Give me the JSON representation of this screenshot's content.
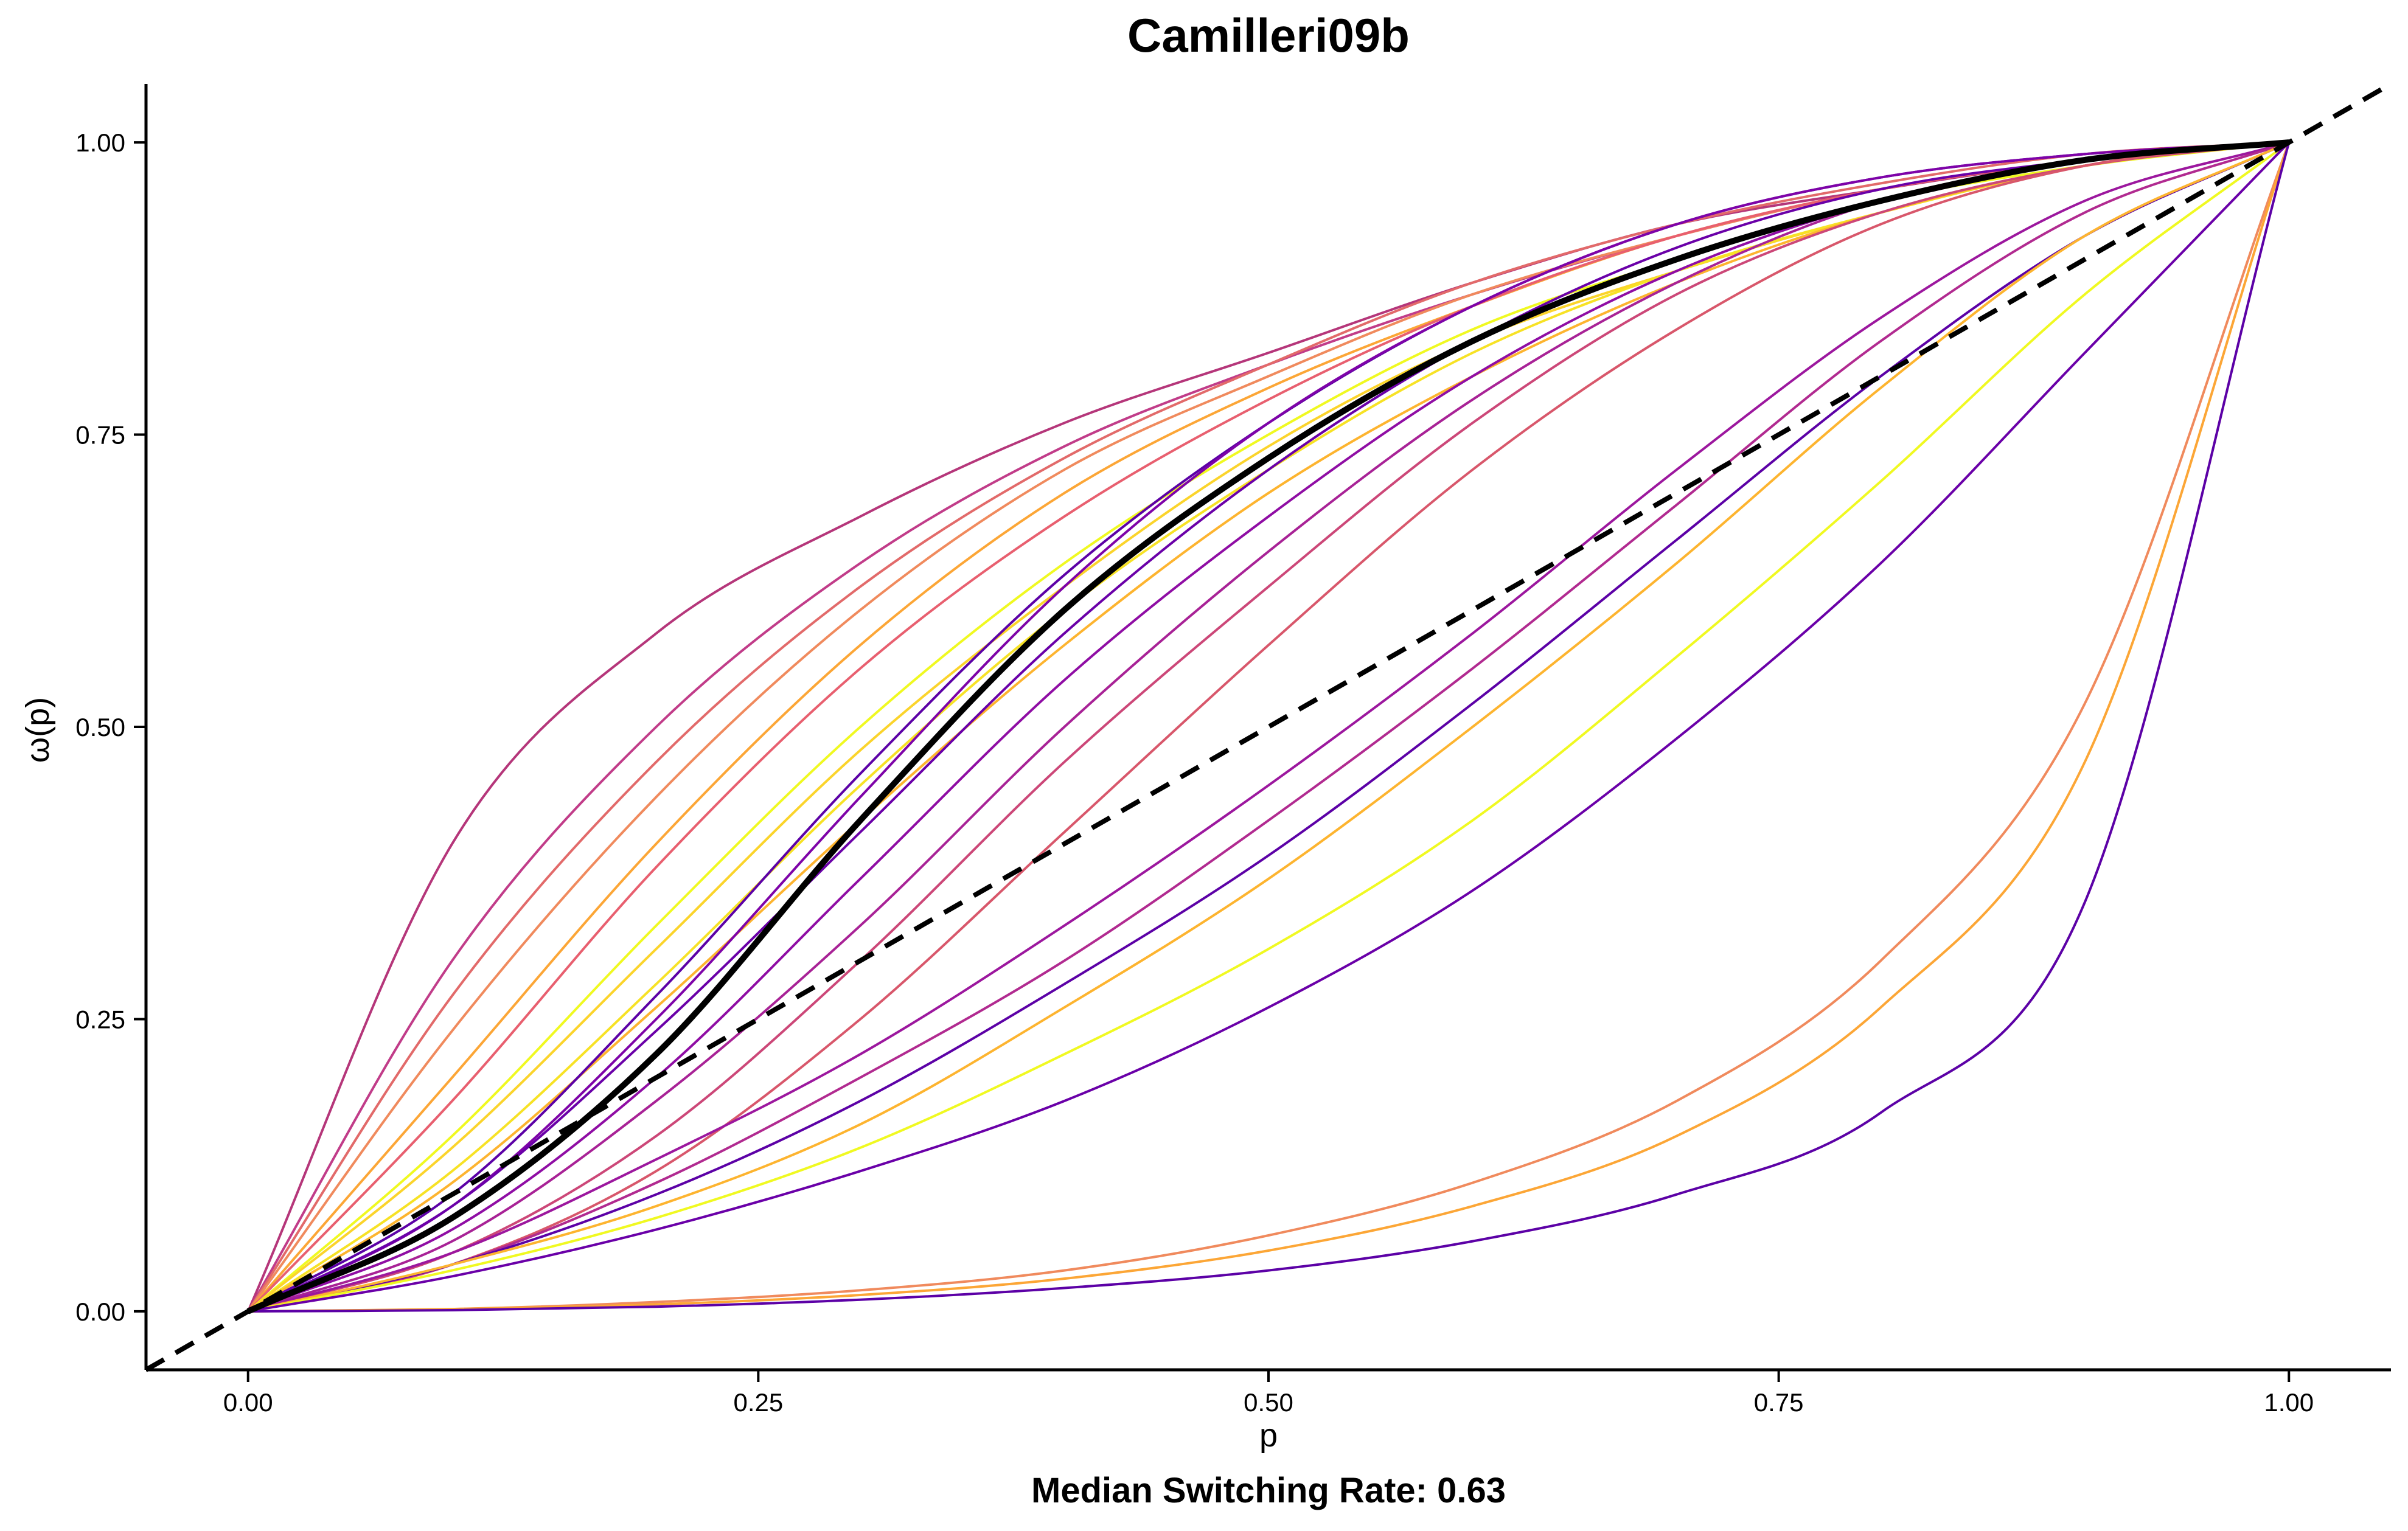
{
  "chart_data": {
    "type": "line",
    "title": "Camilleri09b",
    "xlabel": "p",
    "ylabel": "ω(p)",
    "caption": "Median Switching Rate: 0.63",
    "xlim": [
      -0.05,
      1.05
    ],
    "ylim": [
      -0.05,
      1.05
    ],
    "x_ticks": [
      0,
      0.25,
      0.5,
      0.75,
      1
    ],
    "x_tick_labels": [
      "0.00",
      "0.25",
      "0.50",
      "0.75",
      "1.00"
    ],
    "y_ticks": [
      0,
      0.25,
      0.5,
      0.75,
      1
    ],
    "y_tick_labels": [
      "0.00",
      "0.25",
      "0.50",
      "0.75",
      "1.00"
    ],
    "grid": false,
    "legend": "none",
    "reference_line": {
      "style": "dashed",
      "color": "#000000",
      "slope": 1,
      "intercept": 0
    },
    "median_curve": {
      "color": "#000000",
      "x": [
        0,
        0.1,
        0.2,
        0.3,
        0.4,
        0.5,
        0.6,
        0.7,
        0.8,
        0.9,
        1.0
      ],
      "y": [
        0,
        0.08,
        0.22,
        0.42,
        0.6,
        0.73,
        0.83,
        0.9,
        0.95,
        0.985,
        1.0
      ]
    },
    "x": [
      0,
      0.1,
      0.2,
      0.3,
      0.4,
      0.5,
      0.6,
      0.7,
      0.8,
      0.9,
      1.0
    ],
    "series": [
      {
        "color": "#b5367a",
        "values": [
          0,
          0.4,
          0.58,
          0.68,
          0.76,
          0.82,
          0.88,
          0.93,
          0.96,
          0.985,
          1.0
        ]
      },
      {
        "color": "#c13c89",
        "values": [
          0,
          0.3,
          0.5,
          0.64,
          0.74,
          0.81,
          0.87,
          0.92,
          0.96,
          0.985,
          1.0
        ]
      },
      {
        "color": "#e26a6a",
        "values": [
          0,
          0.27,
          0.47,
          0.62,
          0.73,
          0.81,
          0.88,
          0.93,
          0.965,
          0.99,
          1.0
        ]
      },
      {
        "color": "#f08a5d",
        "values": [
          0,
          0.24,
          0.44,
          0.6,
          0.72,
          0.8,
          0.87,
          0.92,
          0.96,
          0.985,
          1.0
        ]
      },
      {
        "color": "#fca636",
        "values": [
          0,
          0.2,
          0.4,
          0.57,
          0.7,
          0.79,
          0.86,
          0.92,
          0.96,
          0.985,
          1.0
        ]
      },
      {
        "color": "#e85f6f",
        "values": [
          0,
          0.18,
          0.38,
          0.55,
          0.68,
          0.78,
          0.86,
          0.92,
          0.96,
          0.985,
          1.0
        ]
      },
      {
        "color": "#f0f921",
        "values": [
          0,
          0.15,
          0.33,
          0.5,
          0.64,
          0.75,
          0.84,
          0.9,
          0.95,
          0.98,
          1.0
        ]
      },
      {
        "color": "#fbd42b",
        "values": [
          0,
          0.14,
          0.31,
          0.48,
          0.62,
          0.74,
          0.83,
          0.89,
          0.94,
          0.98,
          1.0
        ]
      },
      {
        "color": "#f7e225",
        "values": [
          0,
          0.12,
          0.28,
          0.45,
          0.6,
          0.72,
          0.82,
          0.89,
          0.94,
          0.98,
          1.0
        ]
      },
      {
        "color": "#fdb42f",
        "values": [
          0,
          0.11,
          0.26,
          0.42,
          0.57,
          0.7,
          0.8,
          0.88,
          0.94,
          0.98,
          1.0
        ]
      },
      {
        "color": "#5c01a6",
        "values": [
          0,
          0.1,
          0.27,
          0.46,
          0.63,
          0.76,
          0.86,
          0.93,
          0.97,
          0.99,
          1.0
        ]
      },
      {
        "color": "#7e03a8",
        "values": [
          0,
          0.09,
          0.25,
          0.44,
          0.62,
          0.76,
          0.86,
          0.93,
          0.97,
          0.99,
          1.0
        ]
      },
      {
        "color": "#6a00a8",
        "values": [
          0,
          0.09,
          0.24,
          0.41,
          0.58,
          0.72,
          0.83,
          0.91,
          0.96,
          0.985,
          1.0
        ]
      },
      {
        "color": "#8f0da4",
        "values": [
          0,
          0.07,
          0.2,
          0.37,
          0.54,
          0.68,
          0.8,
          0.89,
          0.95,
          0.985,
          1.0
        ]
      },
      {
        "color": "#a82296",
        "values": [
          0,
          0.06,
          0.18,
          0.33,
          0.5,
          0.65,
          0.78,
          0.88,
          0.95,
          0.985,
          1.0
        ]
      },
      {
        "color": "#cc4778",
        "values": [
          0,
          0.05,
          0.15,
          0.3,
          0.47,
          0.62,
          0.76,
          0.87,
          0.94,
          0.98,
          1.0
        ]
      },
      {
        "color": "#d8576b",
        "values": [
          0,
          0.04,
          0.12,
          0.25,
          0.41,
          0.57,
          0.72,
          0.84,
          0.93,
          0.98,
          1.0
        ]
      },
      {
        "color": "#9c179e",
        "values": [
          0,
          0.05,
          0.13,
          0.22,
          0.33,
          0.45,
          0.58,
          0.72,
          0.85,
          0.95,
          1.0
        ]
      },
      {
        "color": "#b12a90",
        "values": [
          0,
          0.04,
          0.11,
          0.2,
          0.3,
          0.42,
          0.55,
          0.69,
          0.83,
          0.94,
          1.0
        ]
      },
      {
        "color": "#5c01a6",
        "values": [
          0,
          0.04,
          0.1,
          0.18,
          0.28,
          0.39,
          0.52,
          0.66,
          0.8,
          0.92,
          1.0
        ]
      },
      {
        "color": "#fdb42f",
        "values": [
          0,
          0.04,
          0.09,
          0.16,
          0.26,
          0.37,
          0.5,
          0.64,
          0.79,
          0.92,
          1.0
        ]
      },
      {
        "color": "#f0f921",
        "values": [
          0,
          0.035,
          0.08,
          0.14,
          0.22,
          0.31,
          0.42,
          0.56,
          0.71,
          0.87,
          1.0
        ]
      },
      {
        "color": "#6a00a8",
        "values": [
          0,
          0.03,
          0.07,
          0.12,
          0.18,
          0.26,
          0.36,
          0.49,
          0.64,
          0.82,
          1.0
        ]
      },
      {
        "color": "#f08a5d",
        "values": [
          0,
          0.002,
          0.008,
          0.018,
          0.035,
          0.065,
          0.11,
          0.18,
          0.3,
          0.52,
          1.0
        ]
      },
      {
        "color": "#fca636",
        "values": [
          0,
          0.002,
          0.006,
          0.014,
          0.028,
          0.052,
          0.09,
          0.15,
          0.26,
          0.47,
          1.0
        ]
      },
      {
        "color": "#5c01a6",
        "values": [
          0,
          0.001,
          0.004,
          0.01,
          0.02,
          0.035,
          0.06,
          0.1,
          0.17,
          0.35,
          1.0
        ]
      }
    ]
  }
}
